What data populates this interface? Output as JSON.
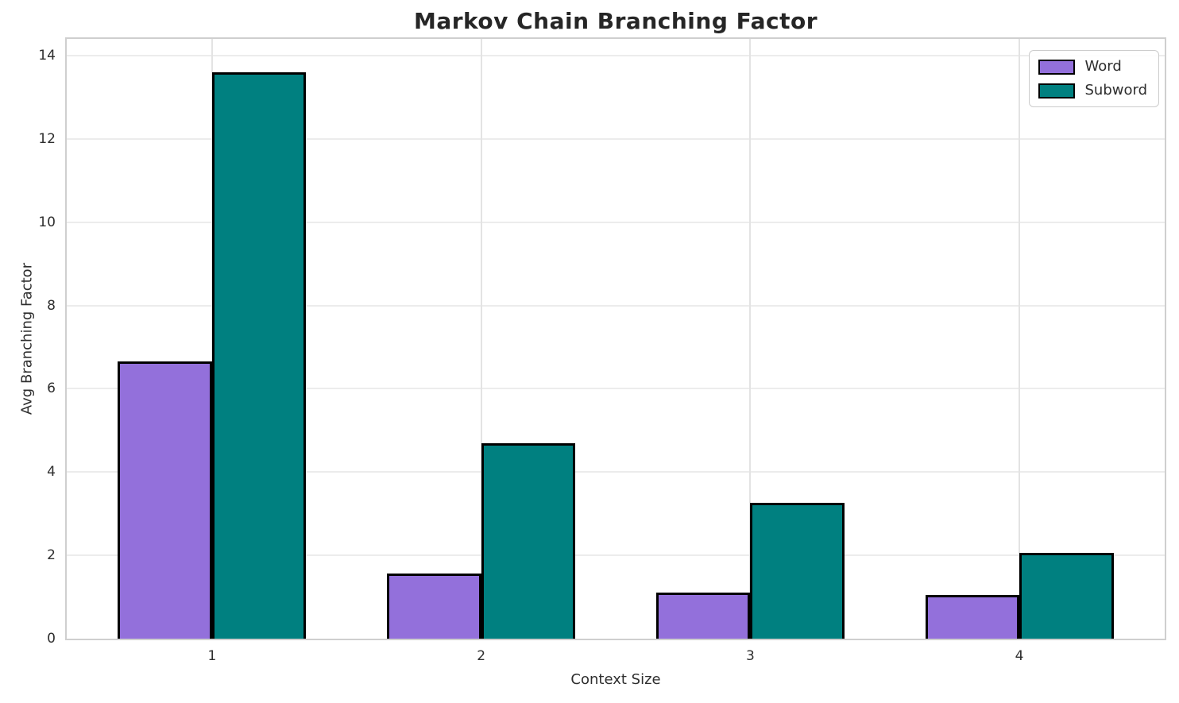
{
  "chart_data": {
    "type": "bar",
    "title": "Markov Chain Branching Factor",
    "xlabel": "Context Size",
    "ylabel": "Avg Branching Factor",
    "categories": [
      "1",
      "2",
      "3",
      "4"
    ],
    "series": [
      {
        "name": "Word",
        "color": "#9370DB",
        "values": [
          6.65,
          1.57,
          1.11,
          1.05
        ]
      },
      {
        "name": "Subword",
        "color": "#008080",
        "values": [
          13.6,
          4.7,
          3.26,
          2.06
        ]
      }
    ],
    "bar_width": 0.35,
    "bar_edge_color": "#000000",
    "ylim": [
      0,
      14.4
    ],
    "yticks": [
      0,
      2,
      4,
      6,
      8,
      10,
      12,
      14
    ],
    "grid": true,
    "grid_color_h": "#ececec",
    "grid_color_v": "#e3e3e3",
    "spine_color": "#cfcfcf",
    "legend_position": "upper right"
  }
}
